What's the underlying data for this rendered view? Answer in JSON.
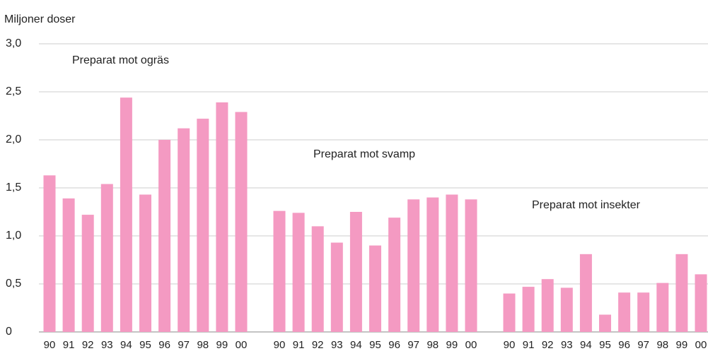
{
  "chart_data": {
    "type": "bar",
    "y_axis_label": "Miljoner doser",
    "categories": [
      "90",
      "91",
      "92",
      "93",
      "94",
      "95",
      "96",
      "97",
      "98",
      "99",
      "00"
    ],
    "series": [
      {
        "name": "Preparat mot ogräs",
        "color": "#f49ac2",
        "values": [
          1.63,
          1.39,
          1.22,
          1.54,
          2.44,
          1.43,
          2.0,
          2.12,
          2.22,
          2.39,
          2.29
        ]
      },
      {
        "name": "Preparat mot svamp",
        "color": "#f49ac2",
        "values": [
          1.26,
          1.24,
          1.1,
          0.93,
          1.25,
          0.9,
          1.19,
          1.38,
          1.4,
          1.43,
          1.38
        ]
      },
      {
        "name": "Preparat mot insekter",
        "color": "#f49ac2",
        "values": [
          0.4,
          0.47,
          0.55,
          0.46,
          0.81,
          0.18,
          0.41,
          0.41,
          0.51,
          0.81,
          0.6
        ]
      }
    ],
    "ylim": [
      0,
      3
    ],
    "yticks": [
      0,
      {
        "value": 0.5,
        "label": "0,5"
      },
      {
        "value": 1,
        "label": "1,0"
      },
      {
        "value": 1.5,
        "label": "1,5"
      },
      {
        "value": 2,
        "label": "2,0"
      },
      {
        "value": 2.5,
        "label": "2,5"
      },
      {
        "value": 3,
        "label": "3,0"
      }
    ],
    "grid": true
  }
}
